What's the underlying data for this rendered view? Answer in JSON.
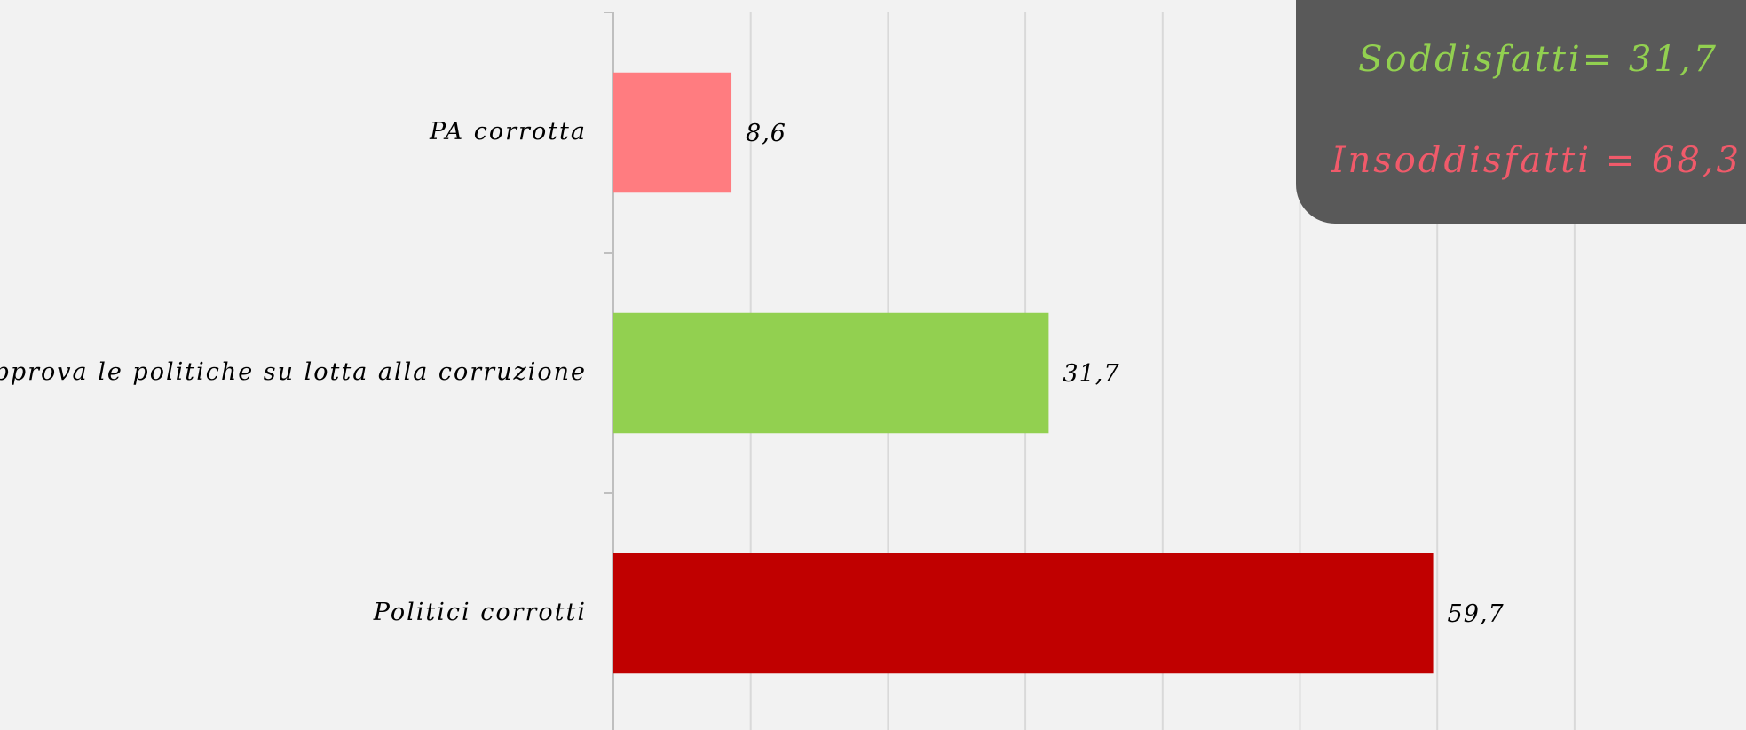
{
  "chart_data": {
    "type": "bar",
    "orientation": "horizontal",
    "categories": [
      "PA corrotta",
      "Approva le politiche su lotta alla corruzione",
      "Politici corrotti"
    ],
    "values": [
      8.6,
      31.7,
      59.7
    ],
    "value_labels": [
      "8,6",
      "31,7",
      "59,7"
    ],
    "colors": [
      "#ff7c80",
      "#92d050",
      "#c00000"
    ],
    "xlim": [
      0,
      70
    ],
    "xticks": [
      0,
      10,
      20,
      30,
      40,
      50,
      60,
      70
    ],
    "grid": true,
    "annotations": [
      {
        "text": "Soddisfatti= 31,7",
        "color": "#92d050"
      },
      {
        "text": "Insoddisfatti = 68,3",
        "color": "#f05a6a"
      }
    ]
  }
}
